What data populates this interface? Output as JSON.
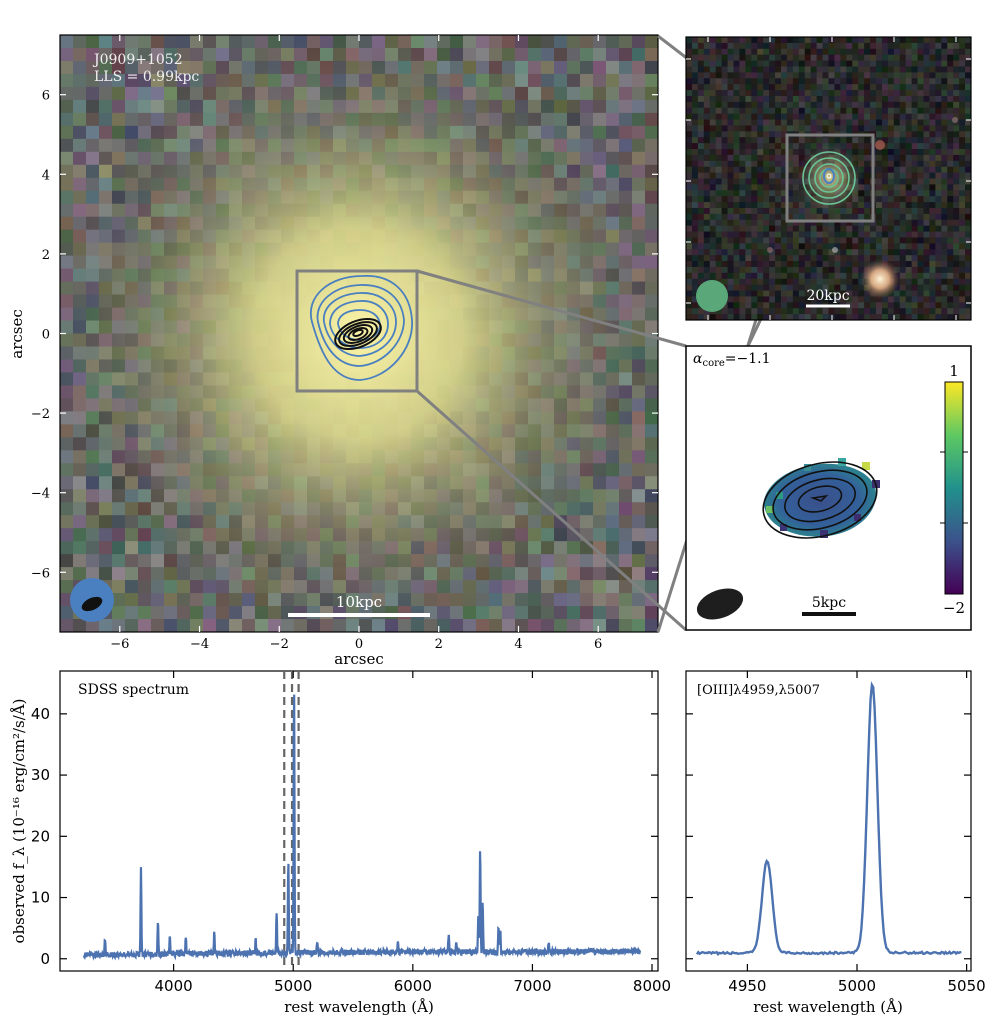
{
  "main_panel": {
    "object_name": "J0909+1052",
    "lls_label": "LLS = 0.99kpc",
    "xlabel": "arcsec",
    "ylabel": "arcsec",
    "scale_bar_label": "10kpc",
    "xticks": [
      "−6",
      "−4",
      "−2",
      "0",
      "2",
      "4",
      "6"
    ],
    "yticks": [
      "6",
      "4",
      "2",
      "0",
      "−2",
      "−4",
      "−6"
    ],
    "axis_range": [
      -7.5,
      7.5
    ]
  },
  "wide_panel": {
    "scale_bar_label": "20kpc"
  },
  "alpha_panel": {
    "alpha_label": "α",
    "alpha_sub": "core",
    "alpha_value": "=−1.1",
    "colorbar_max_label": "1",
    "colorbar_min_label": "−2",
    "scale_bar_label": "5kpc",
    "colorbar_range": [
      -2,
      1
    ]
  },
  "colors": {
    "line": "#4c72b0",
    "contour_blue": "#4a7fc0",
    "contour_black": "#111111",
    "box": "#808080",
    "beam_green": "#5aa87a"
  },
  "chart_data": [
    {
      "type": "line",
      "title": "SDSS spectrum",
      "xlabel": "rest wavelength (Å)",
      "ylabel": "observed f_λ (10⁻¹⁶ erg/cm²/s/Å)",
      "xlim": [
        3050,
        8050
      ],
      "ylim": [
        -2,
        47
      ],
      "xticks": [
        4000,
        5000,
        6000,
        7000,
        8000
      ],
      "yticks": [
        0,
        10,
        20,
        30,
        40
      ],
      "continuum": {
        "x": [
          3250,
          4000,
          5000,
          6000,
          7000,
          7900
        ],
        "y": [
          0.6,
          0.8,
          1.0,
          1.1,
          1.1,
          1.2
        ]
      },
      "emission_lines": [
        {
          "x": 3426,
          "peak": 2.8
        },
        {
          "x": 3727,
          "peak": 13.8
        },
        {
          "x": 3869,
          "peak": 5.2
        },
        {
          "x": 3968,
          "peak": 2.6
        },
        {
          "x": 4102,
          "peak": 2.5
        },
        {
          "x": 4340,
          "peak": 3.6
        },
        {
          "x": 4686,
          "peak": 2.3
        },
        {
          "x": 4861,
          "peak": 6.7
        },
        {
          "x": 4959,
          "peak": 15.2
        },
        {
          "x": 5007,
          "peak": 44
        },
        {
          "x": 5200,
          "peak": 1.8
        },
        {
          "x": 5876,
          "peak": 2.0
        },
        {
          "x": 6300,
          "peak": 3.1
        },
        {
          "x": 6364,
          "peak": 1.5
        },
        {
          "x": 6548,
          "peak": 6.0
        },
        {
          "x": 6563,
          "peak": 17.0
        },
        {
          "x": 6584,
          "peak": 8.0
        },
        {
          "x": 6717,
          "peak": 4.0
        },
        {
          "x": 6731,
          "peak": 3.6
        },
        {
          "x": 7136,
          "peak": 1.6
        }
      ],
      "dashed_lines_x": [
        4925,
        4990,
        5045
      ]
    },
    {
      "type": "line",
      "title": "[OIII]λ4959,λ5007",
      "xlabel": "rest wavelength (Å)",
      "xlim": [
        4922,
        5052
      ],
      "ylim": [
        -2,
        47
      ],
      "xticks": [
        4950,
        5000,
        5050
      ],
      "baseline_x": [
        4927,
        5048
      ],
      "baseline_y": [
        0.9,
        1.0
      ],
      "lines": [
        {
          "x": 4959,
          "peak": 15.2
        },
        {
          "x": 5007,
          "peak": 44
        }
      ]
    }
  ]
}
